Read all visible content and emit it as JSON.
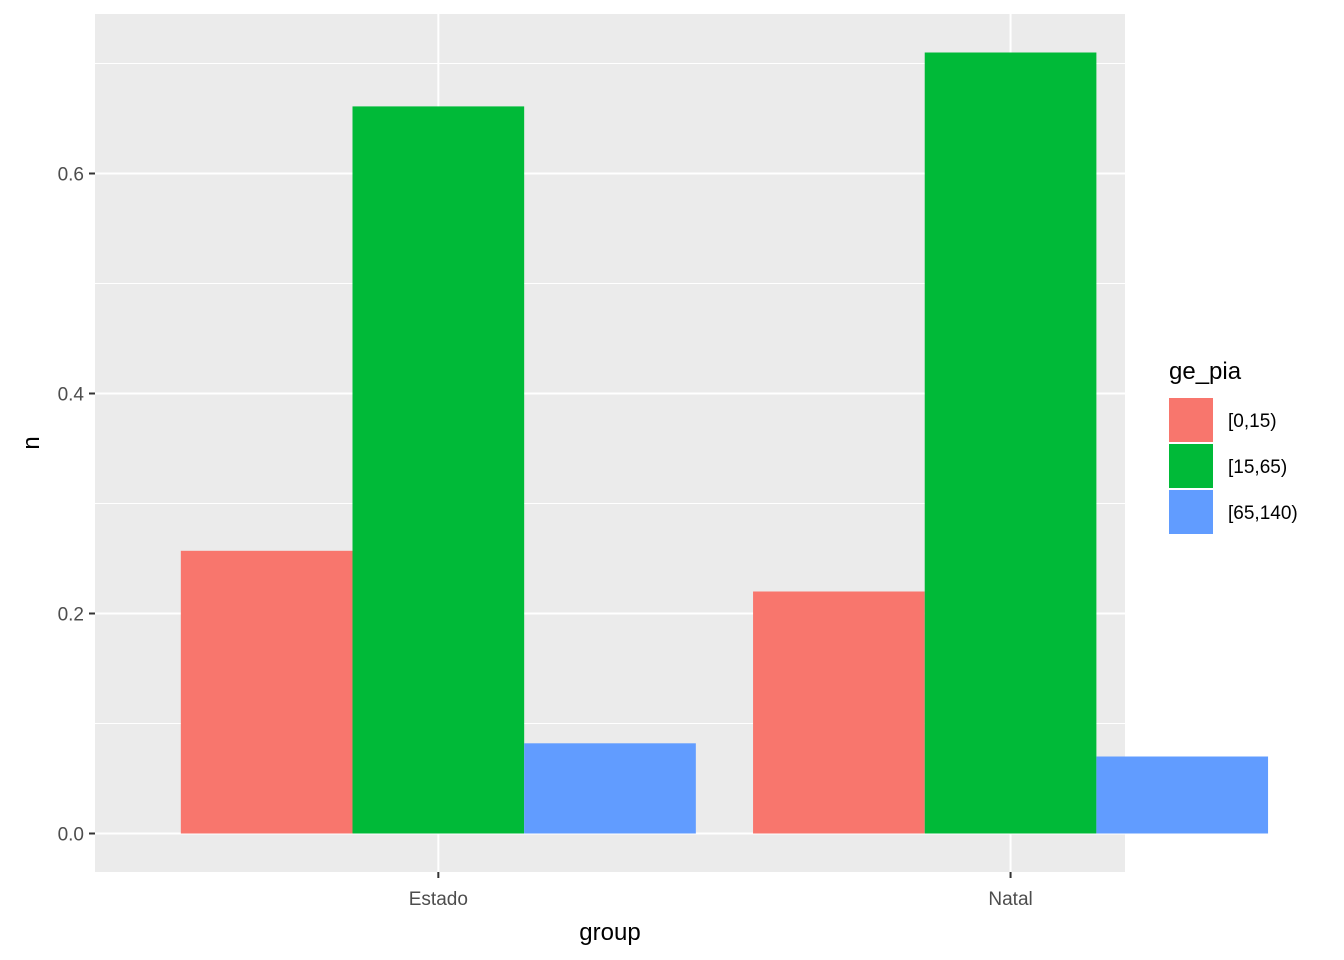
{
  "chart_data": {
    "type": "bar",
    "categories": [
      "Estado",
      "Natal"
    ],
    "series": [
      {
        "name": "[0,15)",
        "values": [
          0.257,
          0.22
        ]
      },
      {
        "name": "[15,65)",
        "values": [
          0.661,
          0.71
        ]
      },
      {
        "name": "[65,140)",
        "values": [
          0.082,
          0.07
        ]
      }
    ],
    "xlabel": "group",
    "ylabel": "n",
    "ylim": [
      -0.035,
      0.745
    ],
    "yticks": [
      "0.0",
      "0.2",
      "0.4",
      "0.6"
    ],
    "legend_title": "ge_pia",
    "legend_position": "right",
    "grid": true
  },
  "colors": {
    "panel_background": "#ebebeb",
    "grid": "#ffffff",
    "series": [
      "#f8766d",
      "#00ba38",
      "#619cff"
    ]
  }
}
